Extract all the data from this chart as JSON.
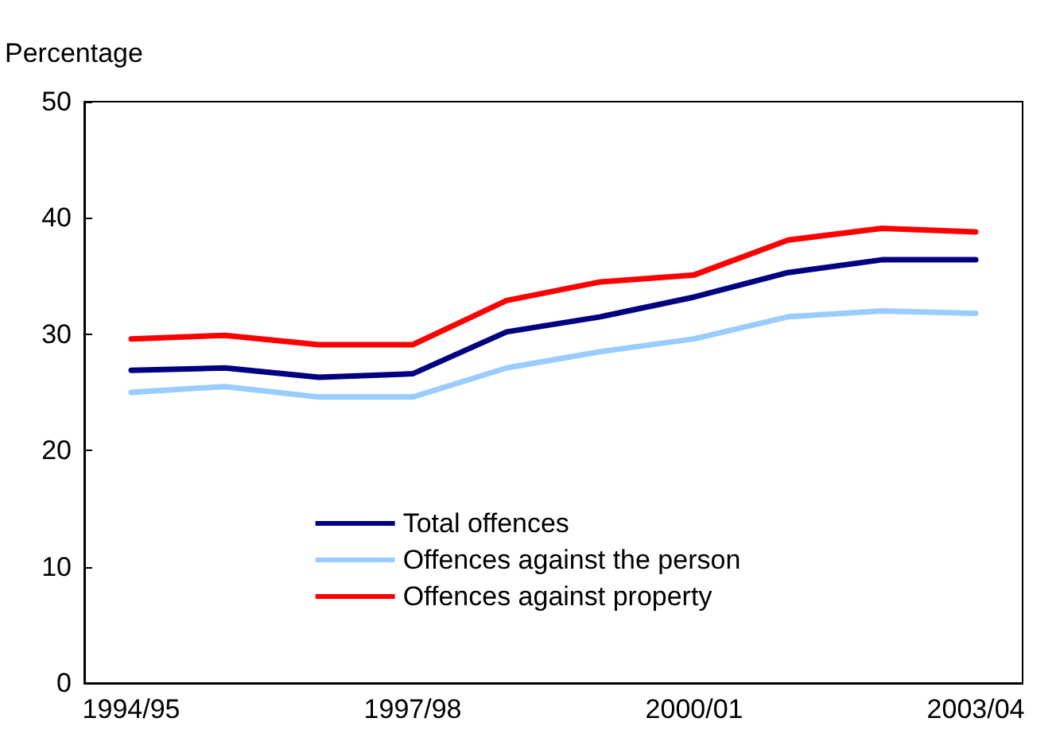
{
  "chart_data": {
    "type": "line",
    "ylabel": "Percentage",
    "categories": [
      "1994/95",
      null,
      null,
      "1997/98",
      null,
      null,
      "2000/01",
      null,
      null,
      "2003/04"
    ],
    "series": [
      {
        "name": "Total offences",
        "color": "#000080",
        "values": [
          26.9,
          27.1,
          26.3,
          26.6,
          30.2,
          31.5,
          33.2,
          35.3,
          36.4,
          36.4
        ]
      },
      {
        "name": "Offences against the person",
        "color": "#99ccff",
        "values": [
          25.0,
          25.5,
          24.6,
          24.6,
          27.1,
          28.5,
          29.6,
          31.5,
          32.0,
          31.8
        ]
      },
      {
        "name": "Offences against property",
        "color": "#ff0000",
        "values": [
          29.6,
          29.9,
          29.1,
          29.1,
          32.9,
          34.5,
          35.1,
          38.1,
          39.1,
          38.8
        ]
      }
    ],
    "ylim": [
      0,
      50
    ],
    "yticks": [
      0,
      10,
      20,
      30,
      40,
      50
    ],
    "grid": false,
    "legend": "bottom",
    "marker": "none",
    "line_style": "solid"
  }
}
